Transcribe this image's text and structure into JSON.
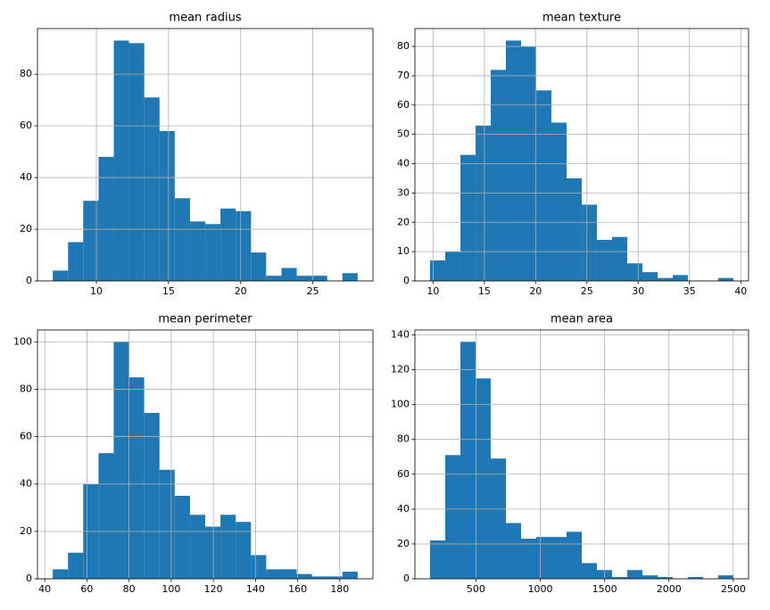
{
  "chart_data": [
    {
      "type": "histogram",
      "title": "mean radius",
      "color": "#1f77b4",
      "grid": true,
      "bins": [
        6.98,
        8.04,
        9.09,
        10.15,
        11.21,
        12.26,
        13.32,
        14.38,
        15.43,
        16.49,
        17.55,
        18.6,
        19.66,
        20.72,
        21.77,
        22.83,
        23.89,
        24.94,
        26.0,
        27.05,
        28.11
      ],
      "values": [
        4,
        15,
        31,
        48,
        93,
        92,
        71,
        58,
        32,
        23,
        22,
        28,
        27,
        11,
        2,
        5,
        2,
        2,
        0,
        3
      ],
      "xlim": [
        5.92,
        29.17
      ],
      "ylim": [
        0,
        97.65
      ],
      "xticks": [
        10,
        15,
        20,
        25
      ],
      "yticks": [
        0,
        20,
        40,
        60,
        80
      ]
    },
    {
      "type": "histogram",
      "title": "mean texture",
      "color": "#1f77b4",
      "grid": true,
      "bins": [
        9.71,
        11.19,
        12.67,
        14.15,
        15.62,
        17.1,
        18.58,
        20.06,
        21.54,
        23.02,
        24.5,
        25.97,
        27.45,
        28.93,
        30.41,
        31.89,
        33.37,
        34.84,
        36.32,
        37.8,
        39.28
      ],
      "values": [
        7,
        10,
        43,
        53,
        72,
        82,
        80,
        65,
        54,
        35,
        26,
        14,
        15,
        6,
        3,
        1,
        2,
        0,
        0,
        1
      ],
      "xlim": [
        8.23,
        40.76
      ],
      "ylim": [
        0,
        86.1
      ],
      "xticks": [
        10,
        15,
        20,
        25,
        30,
        35,
        40
      ],
      "yticks": [
        0,
        10,
        20,
        30,
        40,
        50,
        60,
        70,
        80
      ]
    },
    {
      "type": "histogram",
      "title": "mean perimeter",
      "color": "#1f77b4",
      "grid": true,
      "bins": [
        43.79,
        51.03,
        58.26,
        65.5,
        72.73,
        79.97,
        87.2,
        94.44,
        101.67,
        108.91,
        116.15,
        123.38,
        130.62,
        137.85,
        145.09,
        152.32,
        159.56,
        166.79,
        174.03,
        181.26,
        188.5
      ],
      "values": [
        4,
        11,
        40,
        53,
        100,
        85,
        70,
        46,
        35,
        27,
        22,
        27,
        24,
        10,
        4,
        4,
        2,
        1,
        1,
        3
      ],
      "xlim": [
        36.55,
        195.74
      ],
      "ylim": [
        0,
        105
      ],
      "xticks": [
        40,
        60,
        80,
        100,
        120,
        140,
        160,
        180
      ],
      "yticks": [
        0,
        20,
        40,
        60,
        80,
        100
      ]
    },
    {
      "type": "histogram",
      "title": "mean area",
      "color": "#1f77b4",
      "grid": true,
      "bins": [
        143.5,
        261.38,
        379.25,
        497.13,
        615.0,
        732.88,
        850.75,
        968.63,
        1086.5,
        1204.38,
        1322.25,
        1440.13,
        1558.0,
        1675.88,
        1793.75,
        1911.63,
        2029.5,
        2147.38,
        2265.25,
        2383.13,
        2501.0
      ],
      "values": [
        22,
        71,
        136,
        115,
        69,
        32,
        23,
        24,
        24,
        27,
        9,
        5,
        1,
        5,
        2,
        1,
        0,
        1,
        0,
        2
      ],
      "xlim": [
        25.6,
        2618.9
      ],
      "ylim": [
        0,
        142.8
      ],
      "xticks": [
        500,
        1000,
        1500,
        2000,
        2500
      ],
      "yticks": [
        0,
        20,
        40,
        60,
        80,
        100,
        120,
        140
      ]
    }
  ]
}
